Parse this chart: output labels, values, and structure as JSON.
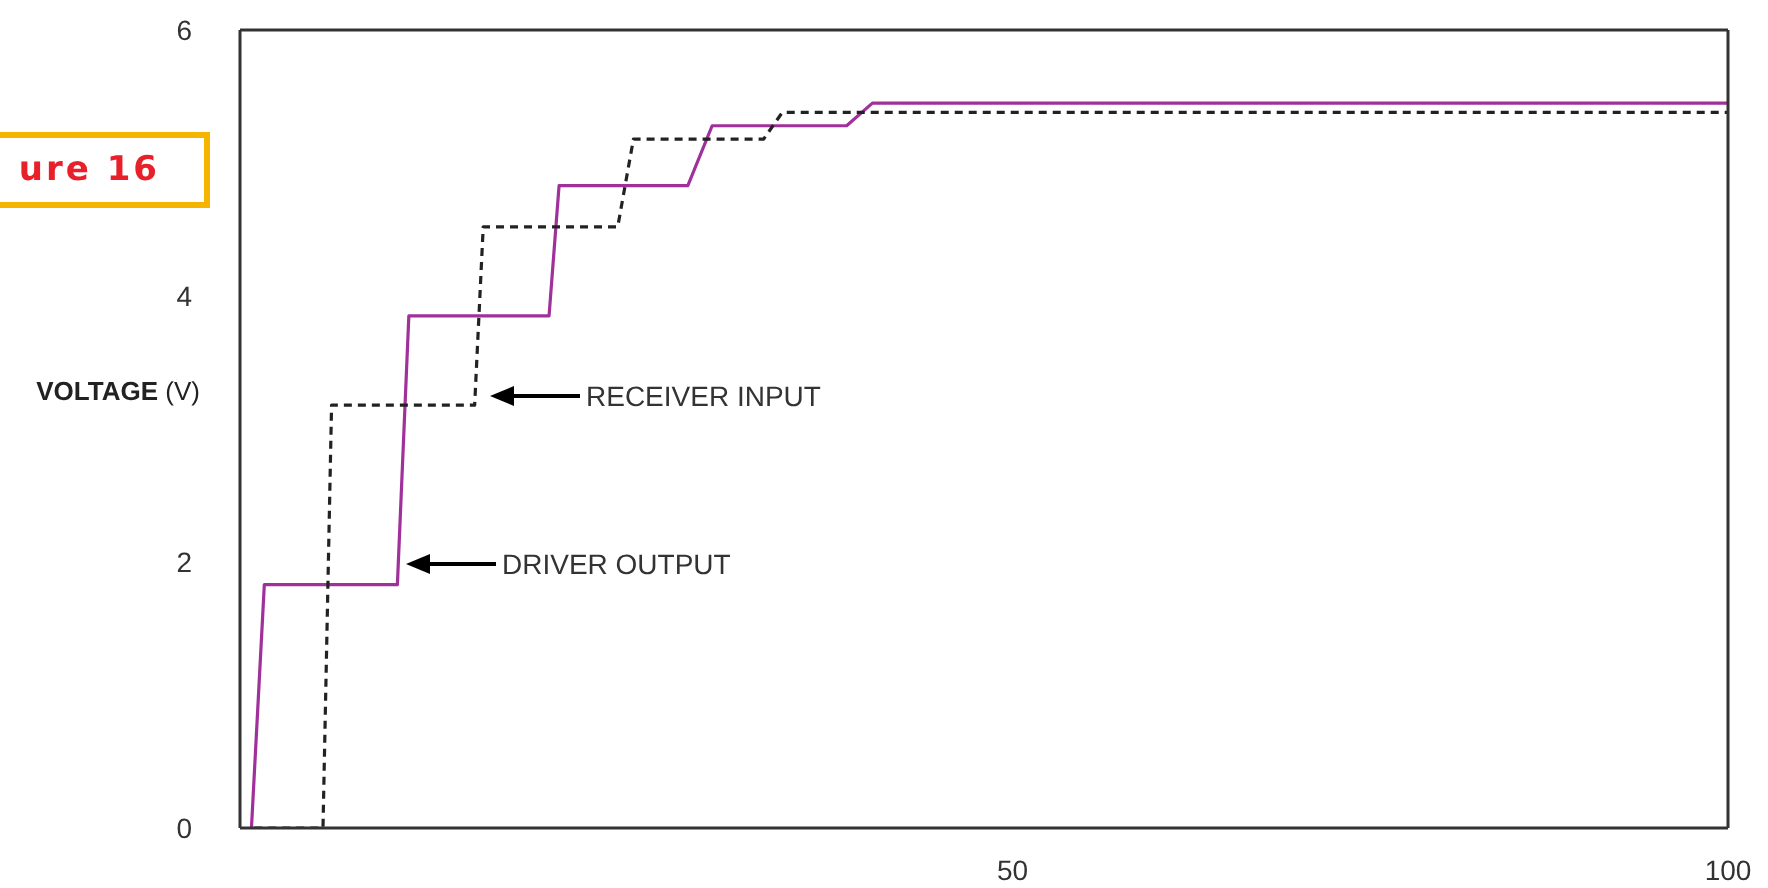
{
  "chart_data": {
    "type": "line",
    "ylabel": "VOLTAGE (V)",
    "xlim": [
      -4,
      100
    ],
    "xticks": [
      50,
      100
    ],
    "ylim": [
      0,
      6
    ],
    "yticks": [
      0,
      2,
      4,
      6
    ],
    "annotations": [
      "ure 16",
      "RECEIVER INPUT",
      "DRIVER OUTPUT"
    ],
    "series": [
      {
        "color": "#a0309a",
        "line_style": "solid",
        "x": [
          -3.2,
          -2.3,
          7.0,
          7.8,
          17.6,
          18.3,
          27.3,
          29.0,
          38.4,
          40.2,
          100
        ],
        "values": [
          0,
          1.83,
          1.83,
          3.85,
          3.85,
          4.83,
          4.83,
          5.28,
          5.28,
          5.45,
          5.45
        ]
      },
      {
        "color": "#222222",
        "line_style": "dashed",
        "x": [
          -3.0,
          1.8,
          2.4,
          12.4,
          13.0,
          22.4,
          23.5,
          32.6,
          33.9,
          100
        ],
        "values": [
          0,
          0,
          3.18,
          3.18,
          4.52,
          4.52,
          5.18,
          5.18,
          5.38,
          5.38
        ]
      }
    ]
  }
}
